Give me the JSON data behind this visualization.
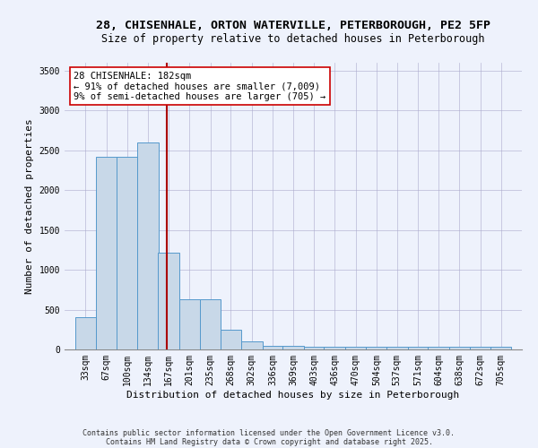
{
  "title_line1": "28, CHISENHALE, ORTON WATERVILLE, PETERBOROUGH, PE2 5FP",
  "title_line2": "Size of property relative to detached houses in Peterborough",
  "xlabel": "Distribution of detached houses by size in Peterborough",
  "ylabel": "Number of detached properties",
  "bin_labels": [
    "33sqm",
    "67sqm",
    "100sqm",
    "134sqm",
    "167sqm",
    "201sqm",
    "235sqm",
    "268sqm",
    "302sqm",
    "336sqm",
    "369sqm",
    "403sqm",
    "436sqm",
    "470sqm",
    "504sqm",
    "537sqm",
    "571sqm",
    "604sqm",
    "638sqm",
    "672sqm",
    "705sqm"
  ],
  "bin_edges": [
    33,
    67,
    100,
    134,
    167,
    201,
    235,
    268,
    302,
    336,
    369,
    403,
    436,
    470,
    504,
    537,
    571,
    604,
    638,
    672,
    705
  ],
  "bar_heights": [
    400,
    2420,
    2420,
    2600,
    1220,
    630,
    630,
    250,
    100,
    50,
    50,
    30,
    30,
    30,
    30,
    30,
    30,
    30,
    30,
    30,
    30
  ],
  "bar_color": "#c8d8e8",
  "bar_edgecolor": "#5599cc",
  "vline_x": 182,
  "vline_color": "#aa0000",
  "annotation_line1": "28 CHISENHALE: 182sqm",
  "annotation_line2": "← 91% of detached houses are smaller (7,009)",
  "annotation_line3": "9% of semi-detached houses are larger (705) →",
  "annotation_box_color": "#ffffff",
  "annotation_box_edgecolor": "#cc0000",
  "ylim": [
    0,
    3600
  ],
  "yticks": [
    0,
    500,
    1000,
    1500,
    2000,
    2500,
    3000,
    3500
  ],
  "bg_color": "#eef2fc",
  "footnote_line1": "Contains HM Land Registry data © Crown copyright and database right 2025.",
  "footnote_line2": "Contains public sector information licensed under the Open Government Licence v3.0.",
  "title_fontsize": 9.5,
  "subtitle_fontsize": 8.5,
  "axis_label_fontsize": 8,
  "tick_fontsize": 7,
  "annotation_fontsize": 7.5,
  "footnote_fontsize": 6
}
